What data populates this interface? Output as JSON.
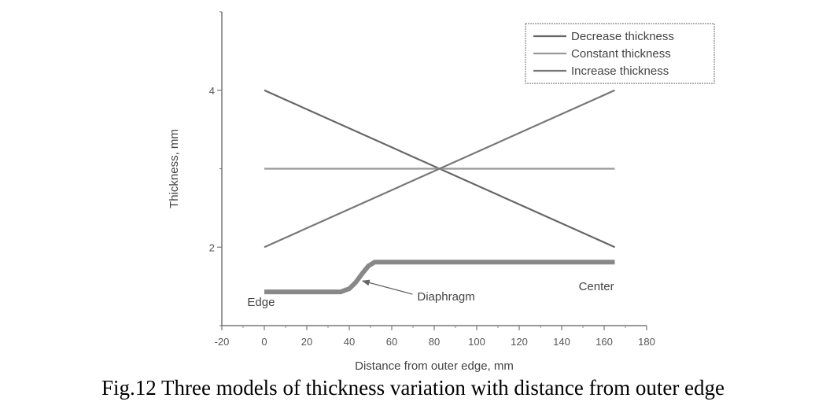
{
  "chart_data": {
    "type": "line",
    "xlabel": "Distance from outer edge, mm",
    "ylabel": "Thickness, mm",
    "xlim": [
      -20,
      180
    ],
    "ylim": [
      1,
      5
    ],
    "x_ticks": [
      -20,
      0,
      20,
      40,
      60,
      80,
      100,
      120,
      140,
      160,
      180
    ],
    "x_tick_labels": [
      "-20",
      "0",
      "20",
      "40",
      "60",
      "80",
      "100",
      "120",
      "140",
      "160",
      "180"
    ],
    "y_ticks": [
      2,
      4
    ],
    "y_tick_labels": [
      "2",
      "4"
    ],
    "series": [
      {
        "name": "Decrease thickness",
        "x": [
          0,
          165
        ],
        "y": [
          4,
          2
        ],
        "color": "#666666"
      },
      {
        "name": "Constant thickness",
        "x": [
          0,
          165
        ],
        "y": [
          3,
          3
        ],
        "color": "#999999"
      },
      {
        "name": "Increase thickness",
        "x": [
          0,
          165
        ],
        "y": [
          2,
          4
        ],
        "color": "#777777"
      }
    ],
    "profile": {
      "x": [
        0,
        36,
        40,
        43,
        46,
        49,
        52,
        165
      ],
      "y": [
        1.43,
        1.43,
        1.47,
        1.55,
        1.66,
        1.76,
        1.81,
        1.81
      ],
      "color": "#888888"
    },
    "legend_position": "top-right",
    "annotations": [
      {
        "text": "Edge",
        "x": -8,
        "y": 1.25
      },
      {
        "text": "Center",
        "x": 148,
        "y": 1.45
      },
      {
        "text": "Diaphragm",
        "x": 72,
        "y": 1.32,
        "arrow_to": [
          44,
          1.6
        ]
      }
    ]
  },
  "caption": "Fig.12 Three models of thickness variation with distance from outer edge"
}
